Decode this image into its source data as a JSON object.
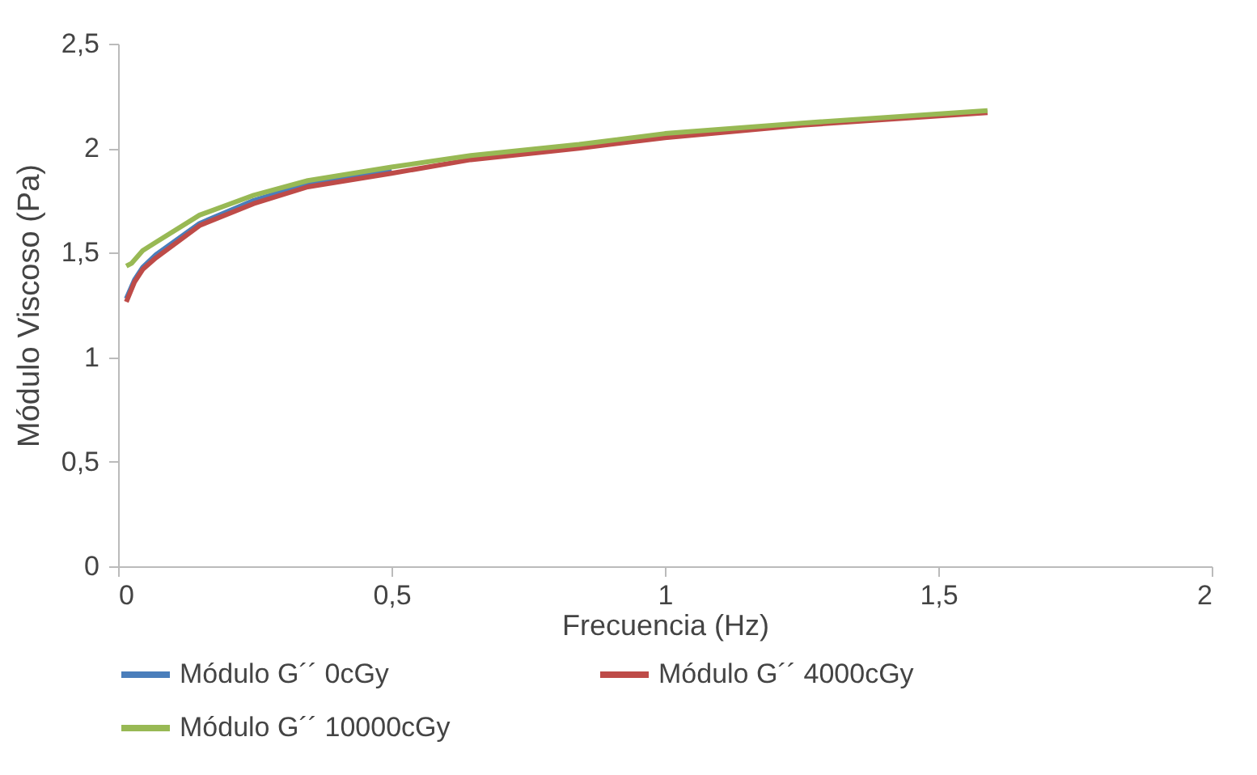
{
  "chart_data": {
    "type": "line",
    "xlabel": "Frecuencia (Hz)",
    "ylabel": "Módulo Viscoso (Pa)",
    "xlim": [
      0,
      2
    ],
    "xticks": [
      0,
      {
        "value": 0.5,
        "label": "0,5"
      },
      1,
      {
        "value": 1.5,
        "label": "1,5"
      },
      2
    ],
    "ylim": [
      0,
      2.5
    ],
    "yticks": [
      0,
      {
        "value": 0.5,
        "label": "0,5"
      },
      1,
      {
        "value": 1.5,
        "label": "1,5"
      },
      2,
      {
        "value": 2.5,
        "label": "2,5"
      }
    ],
    "grid": false,
    "legend": "bottom",
    "marker": "none",
    "line_style": "solid",
    "series": [
      {
        "name": "Módulo  G´´   0cGy",
        "color": "#4a7ebb",
        "x": [
          0.015,
          0.03,
          0.045,
          0.069,
          0.149,
          0.248,
          0.347,
          0.5
        ],
        "values": [
          1.28,
          1.37,
          1.43,
          1.49,
          1.64,
          1.75,
          1.83,
          1.9
        ]
      },
      {
        "name": "Módulo  G´´ 4000cGy",
        "color": "#be4b48",
        "x": [
          0.015,
          0.03,
          0.045,
          0.069,
          0.149,
          0.248,
          0.347,
          0.5,
          0.645,
          0.843,
          1.0,
          1.25,
          1.59
        ],
        "values": [
          1.265,
          1.36,
          1.42,
          1.475,
          1.63,
          1.735,
          1.815,
          1.88,
          1.945,
          2.0,
          2.05,
          2.11,
          2.17
        ]
      },
      {
        "name": "Módulo  G´´ 10000cGy",
        "color": "#98b954",
        "x": [
          0.015,
          0.025,
          0.045,
          0.069,
          0.149,
          0.248,
          0.347,
          0.5,
          0.645,
          0.843,
          1.0,
          1.25,
          1.59
        ],
        "values": [
          1.436,
          1.45,
          1.51,
          1.55,
          1.68,
          1.775,
          1.845,
          1.91,
          1.965,
          2.018,
          2.07,
          2.12,
          2.18
        ]
      }
    ]
  }
}
